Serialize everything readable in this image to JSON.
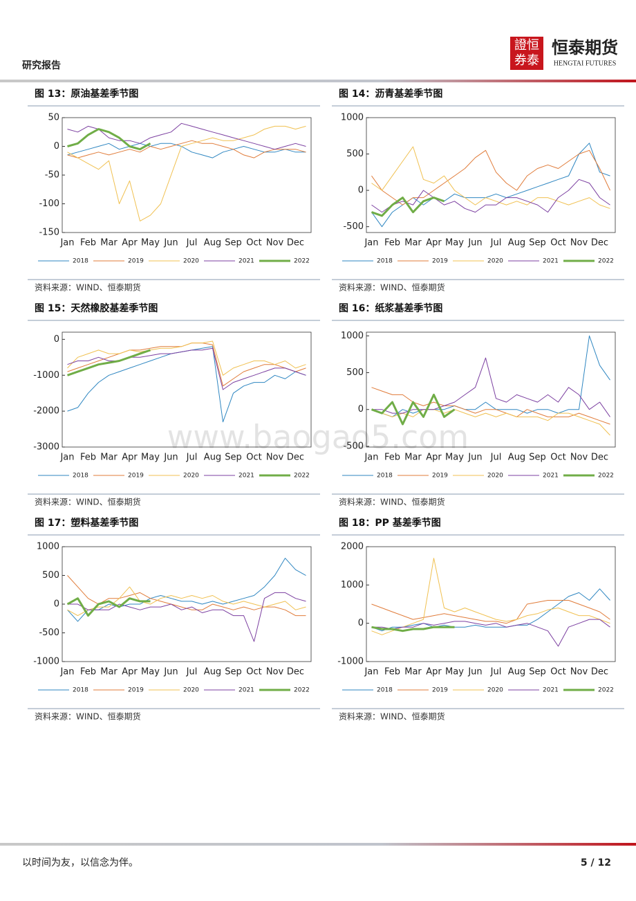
{
  "header": {
    "report_label": "研究报告",
    "logo_cn": "恒泰期货",
    "logo_en": "HENGTAI FUTURES",
    "logo_mark": [
      "證恒",
      "券泰"
    ]
  },
  "watermark": "www.baogao5.com",
  "chart_data": [
    {
      "type": "line",
      "title": "图 13：原油基差季节图",
      "source": "资料来源：WIND、恒泰期货",
      "categories": [
        "Jan",
        null,
        "Feb",
        null,
        "Mar",
        null,
        "Apr",
        null,
        "May",
        null,
        "Jun",
        null,
        "Jul",
        null,
        "Aug",
        null,
        "Sep",
        null,
        "Oct",
        null,
        "Nov",
        null,
        "Dec",
        null
      ],
      "ylim": [
        -150,
        50
      ],
      "yticks": [
        -150,
        -100,
        -50,
        0,
        50
      ],
      "grid": false,
      "series": [
        {
          "name": "2018",
          "color": "#2e86c1",
          "values": [
            -15,
            -10,
            -5,
            0,
            5,
            -5,
            0,
            5,
            0,
            5,
            5,
            0,
            -10,
            -15,
            -20,
            -10,
            -5,
            0,
            -5,
            -10,
            -10,
            -5,
            -10,
            -10
          ]
        },
        {
          "name": "2019",
          "color": "#e07b39",
          "values": [
            -15,
            -20,
            -15,
            -10,
            -15,
            -10,
            -5,
            -10,
            0,
            -5,
            0,
            5,
            10,
            5,
            5,
            0,
            -5,
            -15,
            -20,
            -10,
            -5,
            -5,
            -5,
            -10
          ]
        },
        {
          "name": "2020",
          "color": "#f0c050",
          "values": [
            -10,
            -20,
            -30,
            -40,
            -25,
            -100,
            -60,
            -130,
            -120,
            -100,
            -50,
            0,
            5,
            10,
            15,
            10,
            10,
            15,
            20,
            30,
            35,
            35,
            30,
            35
          ]
        },
        {
          "name": "2021",
          "color": "#7b3fa0",
          "values": [
            30,
            25,
            35,
            30,
            15,
            10,
            10,
            5,
            15,
            20,
            25,
            40,
            35,
            30,
            25,
            20,
            15,
            10,
            5,
            0,
            -5,
            0,
            5,
            0
          ]
        },
        {
          "name": "2022",
          "color": "#70ad47",
          "values": [
            0,
            5,
            20,
            30,
            25,
            15,
            0,
            -5,
            5,
            null,
            null,
            null,
            null,
            null,
            null,
            null,
            null,
            null,
            null,
            null,
            null,
            null,
            null,
            null
          ]
        }
      ]
    },
    {
      "type": "line",
      "title": "图 14：沥青基差季节图",
      "source": "资料来源：WIND、恒泰期货",
      "categories": [
        "Jan",
        null,
        "Feb",
        null,
        "Mar",
        null,
        "Apr",
        null,
        "May",
        null,
        "Jun",
        null,
        "Jul",
        null,
        "Aug",
        null,
        "Sep",
        null,
        "Oct",
        null,
        "Nov",
        null,
        "Dec",
        null
      ],
      "ylim": [
        -580,
        1000
      ],
      "yticks": [
        -500,
        0,
        500,
        1000
      ],
      "grid": false,
      "series": [
        {
          "name": "2018",
          "color": "#2e86c1",
          "values": [
            -300,
            -500,
            -300,
            -200,
            -100,
            -200,
            -100,
            -150,
            -50,
            -100,
            -100,
            -100,
            -50,
            -100,
            -50,
            0,
            50,
            100,
            150,
            200,
            500,
            650,
            250,
            200
          ]
        },
        {
          "name": "2019",
          "color": "#e07b39",
          "values": [
            200,
            0,
            -100,
            -200,
            -100,
            -100,
            0,
            100,
            200,
            300,
            450,
            550,
            250,
            100,
            0,
            200,
            300,
            350,
            300,
            400,
            500,
            550,
            300,
            0
          ]
        },
        {
          "name": "2020",
          "color": "#f0c050",
          "values": [
            100,
            0,
            200,
            400,
            600,
            150,
            100,
            200,
            0,
            -100,
            -200,
            -100,
            -150,
            -200,
            -150,
            -200,
            -100,
            -100,
            -150,
            -200,
            -150,
            -100,
            -200,
            -250
          ]
        },
        {
          "name": "2021",
          "color": "#7b3fa0",
          "values": [
            -200,
            -300,
            -200,
            -150,
            -200,
            0,
            -100,
            -200,
            -150,
            -250,
            -300,
            -200,
            -200,
            -100,
            -100,
            -150,
            -200,
            -300,
            -100,
            0,
            150,
            100,
            -100,
            -200
          ]
        },
        {
          "name": "2022",
          "color": "#70ad47",
          "values": [
            -300,
            -350,
            -200,
            -100,
            -300,
            -150,
            -100,
            -150,
            null,
            null,
            null,
            null,
            null,
            null,
            null,
            null,
            null,
            null,
            null,
            null,
            null,
            null,
            null,
            null
          ]
        }
      ]
    },
    {
      "type": "line",
      "title": "图 15：天然橡胶基差季节图",
      "source": "资料来源：WIND、恒泰期货",
      "categories": [
        "Jan",
        null,
        "Feb",
        null,
        "Mar",
        null,
        "Apr",
        null,
        "May",
        null,
        "Jun",
        null,
        "Jul",
        null,
        "Aug",
        null,
        "Sep",
        null,
        "Oct",
        null,
        "Nov",
        null,
        "Dec",
        null
      ],
      "ylim": [
        -3000,
        200
      ],
      "yticks": [
        -3000,
        -2000,
        -1000,
        0
      ],
      "grid": false,
      "series": [
        {
          "name": "2018",
          "color": "#2e86c1",
          "values": [
            -2000,
            -1900,
            -1500,
            -1200,
            -1000,
            -900,
            -800,
            -700,
            -600,
            -500,
            -400,
            -350,
            -300,
            -250,
            -200,
            -2300,
            -1500,
            -1300,
            -1200,
            -1200,
            -1000,
            -1100,
            -900,
            -1000
          ]
        },
        {
          "name": "2019",
          "color": "#e07b39",
          "values": [
            -900,
            -800,
            -700,
            -600,
            -500,
            -400,
            -300,
            -300,
            -250,
            -200,
            -200,
            -200,
            -100,
            -100,
            -150,
            -1300,
            -1100,
            -900,
            -800,
            -700,
            -700,
            -800,
            -900,
            -800
          ]
        },
        {
          "name": "2020",
          "color": "#f0c050",
          "values": [
            -800,
            -500,
            -400,
            -300,
            -400,
            -400,
            -300,
            -350,
            -300,
            -250,
            -250,
            -200,
            -100,
            -100,
            -50,
            -1000,
            -800,
            -700,
            -600,
            -600,
            -700,
            -600,
            -800,
            -700
          ]
        },
        {
          "name": "2021",
          "color": "#7b3fa0",
          "values": [
            -700,
            -600,
            -600,
            -500,
            -600,
            -600,
            -500,
            -500,
            -450,
            -400,
            -400,
            -350,
            -300,
            -300,
            -250,
            -1400,
            -1200,
            -1100,
            -1000,
            -900,
            -800,
            -800,
            -900,
            -1000
          ]
        },
        {
          "name": "2022",
          "color": "#70ad47",
          "values": [
            -1000,
            -900,
            -800,
            -700,
            -650,
            -600,
            -500,
            -400,
            -300,
            null,
            null,
            null,
            null,
            null,
            null,
            null,
            null,
            null,
            null,
            null,
            null,
            null,
            null,
            null
          ]
        }
      ]
    },
    {
      "type": "line",
      "title": "图 16：纸浆基差季节图",
      "source": "资料来源：WIND、恒泰期货",
      "categories": [
        "Jan",
        null,
        "Feb",
        null,
        "Mar",
        null,
        "Apr",
        null,
        "May",
        null,
        "Jun",
        null,
        "Jul",
        null,
        "Aug",
        null,
        "Sep",
        null,
        "Oct",
        null,
        "Nov",
        null,
        "Dec",
        null
      ],
      "ylim": [
        -510,
        1050
      ],
      "yticks": [
        -500,
        0,
        500,
        1000
      ],
      "grid": false,
      "series": [
        {
          "name": "2018",
          "color": "#2e86c1",
          "values": [
            0,
            -50,
            -100,
            0,
            -50,
            0,
            0,
            0,
            50,
            0,
            0,
            100,
            0,
            0,
            0,
            -50,
            0,
            0,
            -50,
            0,
            0,
            1000,
            600,
            400
          ]
        },
        {
          "name": "2019",
          "color": "#e07b39",
          "values": [
            300,
            250,
            200,
            200,
            100,
            50,
            100,
            50,
            50,
            0,
            -50,
            0,
            0,
            -50,
            -100,
            0,
            -50,
            -100,
            -100,
            -100,
            -50,
            -100,
            -150,
            -200
          ]
        },
        {
          "name": "2020",
          "color": "#f0c050",
          "values": [
            0,
            -50,
            -100,
            -50,
            -100,
            0,
            0,
            -50,
            0,
            -50,
            -100,
            -50,
            -100,
            -50,
            -100,
            -100,
            -100,
            -150,
            -50,
            -50,
            -100,
            -150,
            -200,
            -350
          ]
        },
        {
          "name": "2021",
          "color": "#7b3fa0",
          "values": [
            0,
            0,
            -50,
            -50,
            0,
            0,
            0,
            50,
            100,
            200,
            300,
            700,
            150,
            100,
            200,
            150,
            100,
            200,
            100,
            300,
            200,
            0,
            100,
            -100
          ]
        },
        {
          "name": "2022",
          "color": "#70ad47",
          "values": [
            0,
            -50,
            100,
            -200,
            100,
            -100,
            200,
            -100,
            0,
            null,
            null,
            null,
            null,
            null,
            null,
            null,
            null,
            null,
            null,
            null,
            null,
            null,
            null,
            null
          ]
        }
      ]
    },
    {
      "type": "line",
      "title": "图 17：塑料基差季节图",
      "source": "资料来源：WIND、恒泰期货",
      "categories": [
        "Jan",
        null,
        "Feb",
        null,
        "Mar",
        null,
        "Apr",
        null,
        "May",
        null,
        "Jun",
        null,
        "Jul",
        null,
        "Aug",
        null,
        "Sep",
        null,
        "Oct",
        null,
        "Nov",
        null,
        "Dec",
        null
      ],
      "ylim": [
        -1000,
        1000
      ],
      "yticks": [
        -1000,
        -500,
        0,
        500,
        1000
      ],
      "grid": false,
      "series": [
        {
          "name": "2018",
          "color": "#2e86c1",
          "values": [
            -100,
            -300,
            -100,
            -100,
            0,
            -50,
            0,
            0,
            100,
            150,
            100,
            50,
            50,
            0,
            50,
            0,
            50,
            100,
            150,
            300,
            500,
            800,
            600,
            500
          ]
        },
        {
          "name": "2019",
          "color": "#e07b39",
          "values": [
            500,
            300,
            100,
            0,
            100,
            100,
            150,
            200,
            100,
            50,
            0,
            -50,
            -100,
            -100,
            0,
            -50,
            -100,
            -50,
            -100,
            -50,
            -50,
            -100,
            -200,
            -200
          ]
        },
        {
          "name": "2020",
          "color": "#f0c050",
          "values": [
            -100,
            -200,
            -100,
            -50,
            -50,
            100,
            300,
            50,
            0,
            100,
            150,
            100,
            150,
            100,
            150,
            50,
            0,
            50,
            0,
            -50,
            0,
            50,
            -100,
            -50
          ]
        },
        {
          "name": "2021",
          "color": "#7b3fa0",
          "values": [
            0,
            0,
            -100,
            -100,
            -100,
            0,
            -50,
            -100,
            -50,
            -50,
            0,
            -100,
            -50,
            -150,
            -100,
            -100,
            -200,
            -200,
            -650,
            100,
            200,
            200,
            100,
            50
          ]
        },
        {
          "name": "2022",
          "color": "#70ad47",
          "values": [
            0,
            100,
            -200,
            0,
            50,
            -50,
            100,
            50,
            50,
            null,
            null,
            null,
            null,
            null,
            null,
            null,
            null,
            null,
            null,
            null,
            null,
            null,
            null,
            null
          ]
        }
      ]
    },
    {
      "type": "line",
      "title": "图 18：PP 基差季节图",
      "source": "资料来源：WIND、恒泰期货",
      "categories": [
        "Jan",
        null,
        "Feb",
        null,
        "Mar",
        null,
        "Apr",
        null,
        "May",
        null,
        "Jun",
        null,
        "Jul",
        null,
        "Aug",
        null,
        "Sep",
        null,
        "Oct",
        null,
        "Nov",
        null,
        "Dec",
        null
      ],
      "ylim": [
        -1000,
        2000
      ],
      "yticks": [
        -1000,
        0,
        1000,
        2000
      ],
      "grid": false,
      "series": [
        {
          "name": "2018",
          "color": "#2e86c1",
          "values": [
            -100,
            -200,
            -100,
            -100,
            -50,
            0,
            -100,
            -50,
            -100,
            -100,
            -50,
            -100,
            -100,
            -100,
            -50,
            -50,
            100,
            300,
            500,
            700,
            800,
            600,
            900,
            600
          ]
        },
        {
          "name": "2019",
          "color": "#e07b39",
          "values": [
            500,
            400,
            300,
            200,
            100,
            150,
            200,
            250,
            200,
            150,
            100,
            50,
            50,
            0,
            100,
            500,
            550,
            600,
            600,
            600,
            500,
            400,
            300,
            100
          ]
        },
        {
          "name": "2020",
          "color": "#f0c050",
          "values": [
            -200,
            -300,
            -200,
            -100,
            0,
            100,
            1700,
            400,
            300,
            400,
            300,
            200,
            100,
            50,
            100,
            200,
            250,
            350,
            400,
            300,
            200,
            200,
            100,
            0
          ]
        },
        {
          "name": "2021",
          "color": "#7b3fa0",
          "values": [
            -100,
            -100,
            -150,
            -100,
            -100,
            0,
            -50,
            0,
            50,
            50,
            0,
            -50,
            0,
            -100,
            -50,
            0,
            -100,
            -200,
            -600,
            -100,
            0,
            100,
            100,
            -100
          ]
        },
        {
          "name": "2022",
          "color": "#70ad47",
          "values": [
            -100,
            -150,
            -150,
            -200,
            -150,
            -150,
            -100,
            -100,
            -100,
            null,
            null,
            null,
            null,
            null,
            null,
            null,
            null,
            null,
            null,
            null,
            null,
            null,
            null,
            null
          ]
        }
      ]
    }
  ],
  "footer": {
    "motto": "以时间为友，以信念为伴。",
    "page": "5 / 12"
  }
}
